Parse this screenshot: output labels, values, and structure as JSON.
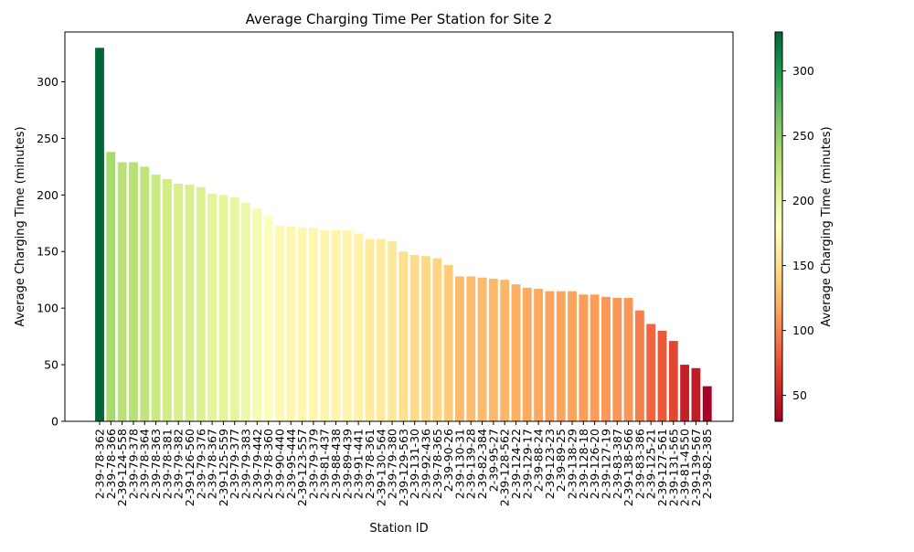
{
  "chart_data": {
    "type": "bar",
    "title": "Average Charging Time Per Station for Site 2",
    "xlabel": "Station ID",
    "ylabel": "Average Charging Time (minutes)",
    "ylim": [
      0,
      344
    ],
    "yticks": [
      0,
      50,
      100,
      150,
      200,
      250,
      300
    ],
    "grid": false,
    "legend": "none",
    "colormap": "RdYlGn",
    "colorbar": {
      "label": "Average Charging Time (minutes)",
      "range": [
        30,
        330
      ],
      "ticks": [
        50,
        100,
        150,
        200,
        250,
        300
      ]
    },
    "categories": [
      "2-39-78-362",
      "2-39-78-366",
      "2-39-124-558",
      "2-39-79-378",
      "2-39-78-364",
      "2-39-78-363",
      "2-39-78-381",
      "2-39-79-382",
      "2-39-126-560",
      "2-39-79-376",
      "2-39-78-367",
      "2-39-125-559",
      "2-39-79-377",
      "2-39-79-383",
      "2-39-79-442",
      "2-39-78-360",
      "2-39-90-440",
      "2-39-95-444",
      "2-39-123-557",
      "2-39-79-379",
      "2-39-81-437",
      "2-39-88-438",
      "2-39-89-439",
      "2-39-91-441",
      "2-39-78-361",
      "2-39-130-564",
      "2-39-79-380",
      "2-39-129-563",
      "2-39-131-30",
      "2-39-92-436",
      "2-39-78-365",
      "2-39-90-26",
      "2-39-130-31",
      "2-39-139-28",
      "2-39-82-384",
      "2-39-95-27",
      "2-39-128-562",
      "2-39-124-22",
      "2-39-129-17",
      "2-39-88-24",
      "2-39-123-23",
      "2-39-89-25",
      "2-39-138-29",
      "2-39-128-18",
      "2-39-126-20",
      "2-39-127-19",
      "2-39-83-387",
      "2-39-138-566",
      "2-39-83-386",
      "2-39-125-21",
      "2-39-127-561",
      "2-39-131-565",
      "2-39-81-4550",
      "2-39-139-567",
      "2-39-82-385"
    ],
    "values": [
      330,
      238,
      229,
      229,
      225,
      218,
      214,
      210,
      209,
      207,
      201,
      200,
      198,
      193,
      188,
      182,
      173,
      172,
      171,
      171,
      169,
      169,
      169,
      166,
      161,
      161,
      159,
      150,
      147,
      146,
      144,
      138,
      128,
      128,
      127,
      126,
      125,
      121,
      118,
      117,
      115,
      115,
      115,
      112,
      112,
      110,
      109,
      109,
      98,
      86,
      80,
      71,
      50,
      47,
      31
    ]
  }
}
